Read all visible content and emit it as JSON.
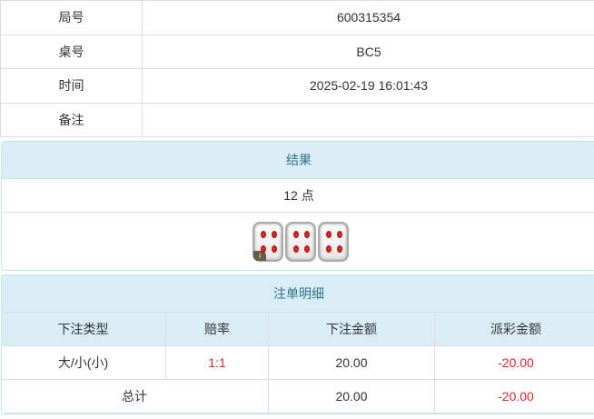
{
  "info": [
    {
      "label": "局号",
      "value": "600315354"
    },
    {
      "label": "桌号",
      "value": "BC5"
    },
    {
      "label": "时间",
      "value": "2025-02-19 16:01:43"
    },
    {
      "label": "备注",
      "value": ""
    }
  ],
  "result": {
    "title": "结果",
    "points": "12 点",
    "dice": [
      4,
      4,
      4
    ],
    "dice_badge": "i"
  },
  "bets": {
    "title": "注单明细",
    "headers": [
      "下注类型",
      "赔率",
      "下注金额",
      "派彩金额"
    ],
    "rows": [
      {
        "type": "大/小(小)",
        "odds": "1:1",
        "amount": "20.00",
        "payout": "-20.00"
      }
    ],
    "total": {
      "label": "总计",
      "amount": "20.00",
      "payout": "-20.00"
    }
  },
  "colors": {
    "header_bg": "#d9edf7",
    "header_text": "#31708f",
    "negative": "#d9262b"
  }
}
